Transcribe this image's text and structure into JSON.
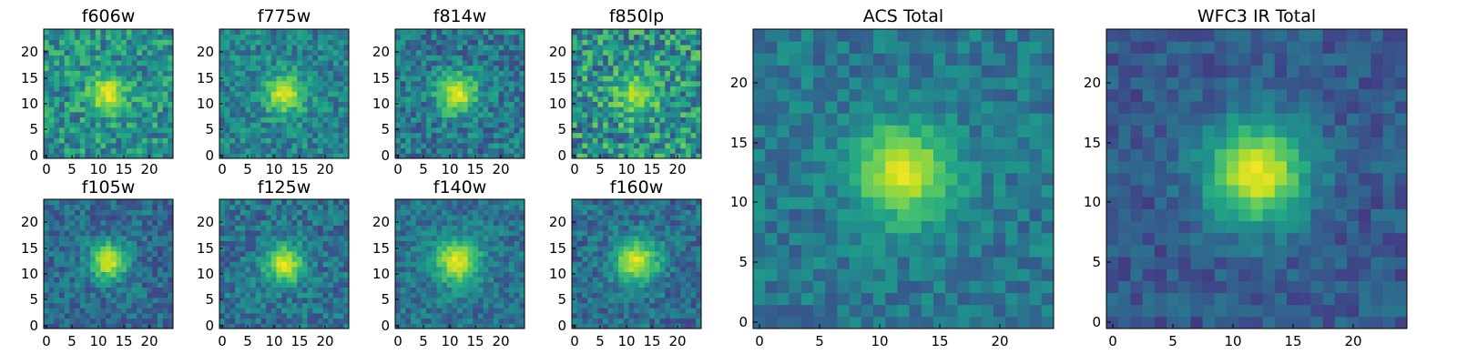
{
  "chart_data": [
    {
      "type": "heatmap",
      "title": "f606w",
      "xticks": [
        "0",
        "5",
        "10",
        "15",
        "20"
      ],
      "yticks": [
        "0",
        "5",
        "10",
        "15",
        "20"
      ],
      "xlim": [
        -0.5,
        24.5
      ],
      "ylim": [
        -0.5,
        24.5
      ],
      "grid_size": 25,
      "colormap": "viridis",
      "source": {
        "center": [
          12,
          12
        ],
        "peak": 0.95,
        "sigma": 2.6,
        "background": 0.5,
        "noise": 0.22,
        "seed": 11
      }
    },
    {
      "type": "heatmap",
      "title": "f775w",
      "xticks": [
        "0",
        "5",
        "10",
        "15",
        "20"
      ],
      "yticks": [
        "0",
        "5",
        "10",
        "15",
        "20"
      ],
      "xlim": [
        -0.5,
        24.5
      ],
      "ylim": [
        -0.5,
        24.5
      ],
      "grid_size": 25,
      "colormap": "viridis",
      "source": {
        "center": [
          12,
          12
        ],
        "peak": 0.95,
        "sigma": 2.7,
        "background": 0.45,
        "noise": 0.18,
        "seed": 23
      }
    },
    {
      "type": "heatmap",
      "title": "f814w",
      "xticks": [
        "0",
        "5",
        "10",
        "15",
        "20"
      ],
      "yticks": [
        "0",
        "5",
        "10",
        "15",
        "20"
      ],
      "xlim": [
        -0.5,
        24.5
      ],
      "ylim": [
        -0.5,
        24.5
      ],
      "grid_size": 25,
      "colormap": "viridis",
      "source": {
        "center": [
          11.5,
          12
        ],
        "peak": 0.95,
        "sigma": 2.8,
        "background": 0.4,
        "noise": 0.2,
        "seed": 37
      }
    },
    {
      "type": "heatmap",
      "title": "f850lp",
      "xticks": [
        "0",
        "5",
        "10",
        "15",
        "20"
      ],
      "yticks": [
        "0",
        "5",
        "10",
        "15",
        "20"
      ],
      "xlim": [
        -0.5,
        24.5
      ],
      "ylim": [
        -0.5,
        24.5
      ],
      "grid_size": 25,
      "colormap": "viridis",
      "source": {
        "center": [
          12,
          12
        ],
        "peak": 0.85,
        "sigma": 3.0,
        "background": 0.5,
        "noise": 0.28,
        "seed": 41
      }
    },
    {
      "type": "heatmap",
      "title": "f105w",
      "xticks": [
        "0",
        "5",
        "10",
        "15",
        "20"
      ],
      "yticks": [
        "0",
        "5",
        "10",
        "15",
        "20"
      ],
      "xlim": [
        -0.5,
        24.5
      ],
      "ylim": [
        -0.5,
        24.5
      ],
      "grid_size": 25,
      "colormap": "viridis",
      "source": {
        "center": [
          12,
          12.5
        ],
        "peak": 0.95,
        "sigma": 2.6,
        "background": 0.35,
        "noise": 0.16,
        "seed": 53
      }
    },
    {
      "type": "heatmap",
      "title": "f125w",
      "xticks": [
        "0",
        "5",
        "10",
        "15",
        "20"
      ],
      "yticks": [
        "0",
        "5",
        "10",
        "15",
        "20"
      ],
      "xlim": [
        -0.5,
        24.5
      ],
      "ylim": [
        -0.5,
        24.5
      ],
      "grid_size": 25,
      "colormap": "viridis",
      "source": {
        "center": [
          12,
          12
        ],
        "peak": 0.95,
        "sigma": 2.7,
        "background": 0.38,
        "noise": 0.17,
        "seed": 67
      }
    },
    {
      "type": "heatmap",
      "title": "f140w",
      "xticks": [
        "0",
        "5",
        "10",
        "15",
        "20"
      ],
      "yticks": [
        "0",
        "5",
        "10",
        "15",
        "20"
      ],
      "xlim": [
        -0.5,
        24.5
      ],
      "ylim": [
        -0.5,
        24.5
      ],
      "grid_size": 25,
      "colormap": "viridis",
      "source": {
        "center": [
          11.5,
          12.5
        ],
        "peak": 0.95,
        "sigma": 3.2,
        "background": 0.38,
        "noise": 0.15,
        "seed": 71
      }
    },
    {
      "type": "heatmap",
      "title": "f160w",
      "xticks": [
        "0",
        "5",
        "10",
        "15",
        "20"
      ],
      "yticks": [
        "0",
        "5",
        "10",
        "15",
        "20"
      ],
      "xlim": [
        -0.5,
        24.5
      ],
      "ylim": [
        -0.5,
        24.5
      ],
      "grid_size": 25,
      "colormap": "viridis",
      "source": {
        "center": [
          12,
          12.5
        ],
        "peak": 0.95,
        "sigma": 3.1,
        "background": 0.36,
        "noise": 0.16,
        "seed": 83
      }
    },
    {
      "type": "heatmap",
      "title": "ACS Total",
      "xticks": [
        "0",
        "5",
        "10",
        "15",
        "20"
      ],
      "yticks": [
        "0",
        "5",
        "10",
        "15",
        "20"
      ],
      "xlim": [
        -0.5,
        24.5
      ],
      "ylim": [
        -0.5,
        24.5
      ],
      "grid_size": 25,
      "colormap": "viridis",
      "source": {
        "center": [
          12,
          12.5
        ],
        "peak": 0.95,
        "sigma": 2.9,
        "background": 0.4,
        "noise": 0.13,
        "seed": 97
      }
    },
    {
      "type": "heatmap",
      "title": "WFC3 IR Total",
      "xticks": [
        "0",
        "5",
        "10",
        "15",
        "20"
      ],
      "yticks": [
        "0",
        "5",
        "10",
        "15",
        "20"
      ],
      "xlim": [
        -0.5,
        24.5
      ],
      "ylim": [
        -0.5,
        24.5
      ],
      "grid_size": 25,
      "colormap": "viridis",
      "source": {
        "center": [
          12,
          12.5
        ],
        "peak": 0.97,
        "sigma": 3.1,
        "background": 0.28,
        "noise": 0.11,
        "seed": 103
      }
    }
  ]
}
